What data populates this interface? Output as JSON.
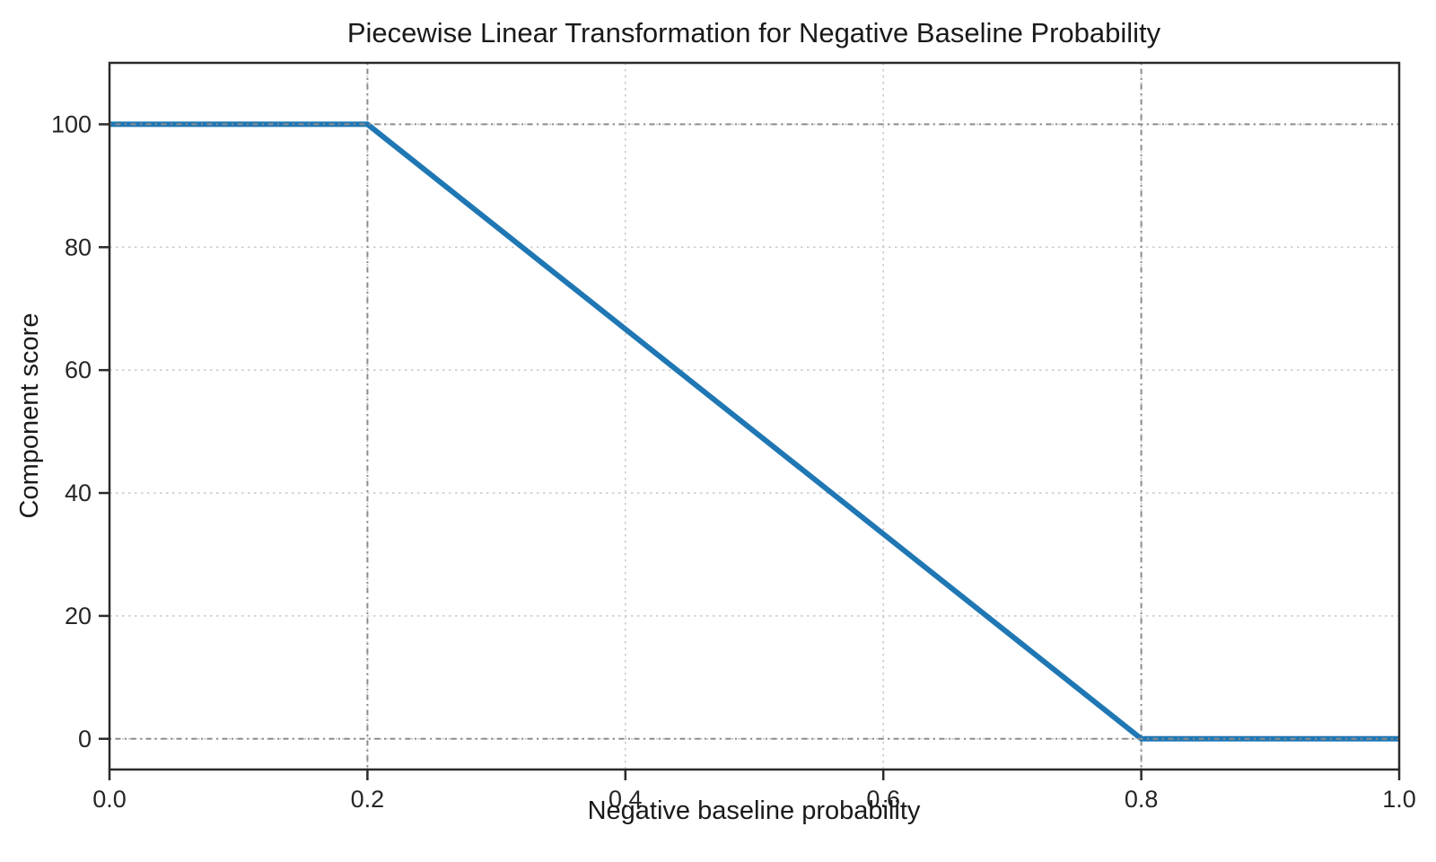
{
  "chart_data": {
    "type": "line",
    "title": "Piecewise Linear Transformation for Negative Baseline Probability",
    "xlabel": "Negative baseline probability",
    "ylabel": "Component score",
    "xlim": [
      0.0,
      1.0
    ],
    "ylim": [
      -5,
      110
    ],
    "xticks": {
      "values": [
        0.0,
        0.2,
        0.4,
        0.6,
        0.8,
        1.0
      ],
      "labels": [
        "0.0",
        "0.2",
        "0.4",
        "0.6",
        "0.8",
        "1.0"
      ]
    },
    "yticks": {
      "values": [
        0,
        20,
        40,
        60,
        80,
        100
      ],
      "labels": [
        "0",
        "20",
        "40",
        "60",
        "80",
        "100"
      ]
    },
    "grid": {
      "on": true,
      "linestyle": "dotted",
      "color": "#cbcbcb"
    },
    "reference_lines": {
      "x_values": [
        0.2,
        0.8
      ],
      "y_values": [
        0,
        100
      ],
      "color": "#8c8c8c",
      "linestyle": "dash-dot"
    },
    "series": [
      {
        "name": "piecewise-linear-transform",
        "color": "#1f77b4",
        "x": [
          0.0,
          0.2,
          0.8,
          1.0
        ],
        "y": [
          100,
          100,
          0,
          0
        ]
      }
    ],
    "legend_position": "none",
    "breakpoints": {
      "flat_high_until_x": 0.2,
      "flat_high_value": 100,
      "flat_low_from_x": 0.8,
      "flat_low_value": 0
    },
    "colors": {
      "line": "#1f77b4",
      "spine": "#2b2b2b",
      "grid_minor": "#cbcbcb",
      "grid_reference": "#8c8c8c",
      "background": "#ffffff"
    }
  }
}
